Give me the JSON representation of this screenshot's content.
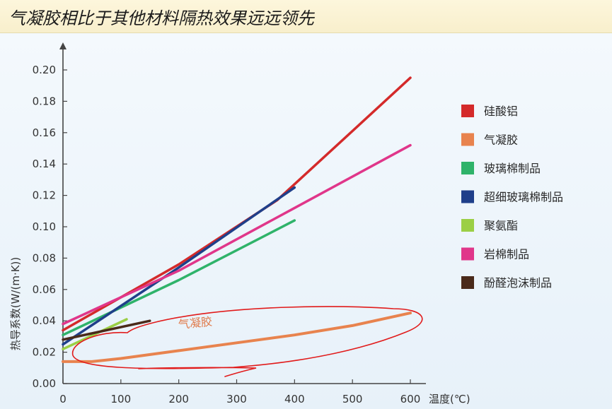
{
  "header": {
    "title": "气凝胶相比于其他材料隔热效果远远领先"
  },
  "chart_data": {
    "type": "line",
    "xlabel": "温度(℃)",
    "ylabel": "热导系数(W/(m·K))",
    "xlim": [
      0,
      600
    ],
    "ylim": [
      0,
      0.2
    ],
    "x_ticks": [
      "0",
      "100",
      "200",
      "300",
      "400",
      "500",
      "600"
    ],
    "y_ticks": [
      "0.00",
      "0.02",
      "0.04",
      "0.06",
      "0.08",
      "0.10",
      "0.12",
      "0.14",
      "0.16",
      "0.18",
      "0.20"
    ],
    "legend_position": "right",
    "grid": false,
    "series": [
      {
        "name": "硅酸铝",
        "color": "#d42a2a",
        "points": [
          [
            0,
            0.034
          ],
          [
            200,
            0.076
          ],
          [
            370,
            0.117
          ],
          [
            600,
            0.195
          ]
        ]
      },
      {
        "name": "气凝胶",
        "color": "#e8834e",
        "points": [
          [
            0,
            0.014
          ],
          [
            50,
            0.014
          ],
          [
            100,
            0.016
          ],
          [
            200,
            0.021
          ],
          [
            300,
            0.026
          ],
          [
            400,
            0.031
          ],
          [
            500,
            0.037
          ],
          [
            600,
            0.045
          ]
        ]
      },
      {
        "name": "玻璃棉制品",
        "color": "#2fb36a",
        "points": [
          [
            0,
            0.031
          ],
          [
            200,
            0.066
          ],
          [
            400,
            0.104
          ]
        ]
      },
      {
        "name": "超细玻璃棉制品",
        "color": "#1f3f8a",
        "points": [
          [
            0,
            0.025
          ],
          [
            200,
            0.074
          ],
          [
            400,
            0.125
          ]
        ]
      },
      {
        "name": "聚氨酯",
        "color": "#9bcf45",
        "points": [
          [
            0,
            0.022
          ],
          [
            110,
            0.041
          ]
        ]
      },
      {
        "name": "岩棉制品",
        "color": "#e0368a",
        "points": [
          [
            0,
            0.038
          ],
          [
            200,
            0.072
          ],
          [
            400,
            0.112
          ],
          [
            600,
            0.152
          ]
        ]
      },
      {
        "name": "酚醛泡沫制品",
        "color": "#4a2a1a",
        "points": [
          [
            0,
            0.028
          ],
          [
            150,
            0.04
          ]
        ]
      }
    ],
    "annotations": [
      {
        "text": "气凝胶",
        "color": "#e8834e",
        "x": 200,
        "y": 0.035
      },
      {
        "shape": "hand-drawn ellipse",
        "color": "#e11b1b",
        "around": "气凝胶"
      }
    ]
  }
}
